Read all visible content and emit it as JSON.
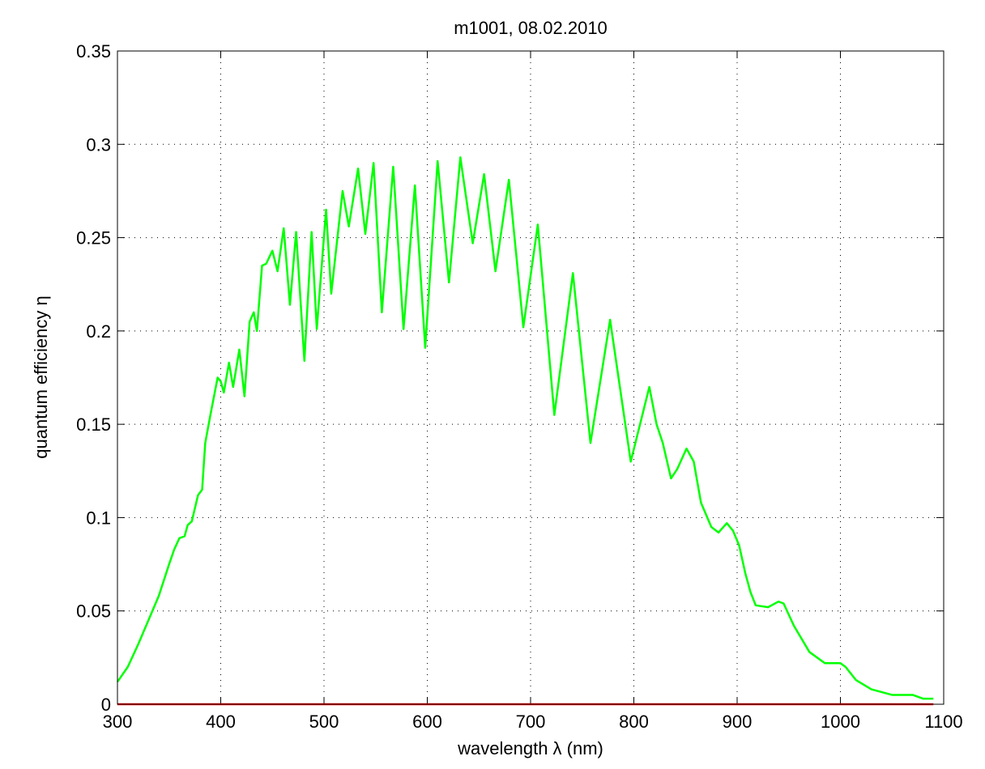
{
  "chart_data": {
    "type": "line",
    "title": "m1001, 08.02.2010",
    "xlabel": "wavelength λ  (nm)",
    "ylabel": "quantum efficiency  η",
    "xlim": [
      300,
      1100
    ],
    "ylim": [
      0,
      0.35
    ],
    "xticks": [
      300,
      400,
      500,
      600,
      700,
      800,
      900,
      1000,
      1100
    ],
    "yticks": [
      0,
      0.05,
      0.1,
      0.15,
      0.2,
      0.25,
      0.3,
      0.35
    ],
    "grid": true,
    "series": [
      {
        "color": "#00ff00",
        "x": [
          300,
          310,
          320,
          330,
          340,
          350,
          355,
          360,
          365,
          368,
          372,
          378,
          382,
          385,
          390,
          397,
          400,
          403,
          408,
          412,
          418,
          423,
          428,
          432,
          435,
          440,
          444,
          450,
          455,
          461,
          467,
          473,
          481,
          488,
          493,
          502,
          507,
          518,
          524,
          533,
          540,
          548,
          556,
          567,
          577,
          588,
          598,
          610,
          621,
          632,
          644,
          655,
          666,
          679,
          693,
          707,
          723,
          741,
          758,
          777,
          797,
          815,
          822,
          828,
          836,
          842,
          851,
          858,
          865,
          875,
          882,
          890,
          896,
          902,
          908,
          913,
          918,
          930,
          940,
          945,
          955,
          970,
          985,
          1000,
          1005,
          1015,
          1030,
          1050,
          1070,
          1080,
          1090
        ],
        "values": [
          0.012,
          0.02,
          0.032,
          0.045,
          0.058,
          0.075,
          0.083,
          0.089,
          0.09,
          0.096,
          0.098,
          0.112,
          0.115,
          0.14,
          0.155,
          0.175,
          0.173,
          0.167,
          0.183,
          0.17,
          0.19,
          0.165,
          0.205,
          0.21,
          0.2,
          0.235,
          0.236,
          0.243,
          0.232,
          0.255,
          0.214,
          0.253,
          0.184,
          0.253,
          0.201,
          0.265,
          0.22,
          0.275,
          0.256,
          0.287,
          0.252,
          0.29,
          0.21,
          0.288,
          0.201,
          0.278,
          0.191,
          0.291,
          0.226,
          0.293,
          0.247,
          0.284,
          0.232,
          0.281,
          0.202,
          0.257,
          0.155,
          0.231,
          0.14,
          0.206,
          0.13,
          0.17,
          0.15,
          0.14,
          0.121,
          0.126,
          0.137,
          0.13,
          0.108,
          0.095,
          0.092,
          0.097,
          0.093,
          0.085,
          0.07,
          0.06,
          0.053,
          0.052,
          0.055,
          0.054,
          0.042,
          0.028,
          0.022,
          0.022,
          0.02,
          0.013,
          0.008,
          0.005,
          0.005,
          0.003,
          0.003
        ]
      },
      {
        "color": "#ff0000",
        "x": [
          300,
          1090
        ],
        "values": [
          0,
          0
        ]
      }
    ]
  }
}
